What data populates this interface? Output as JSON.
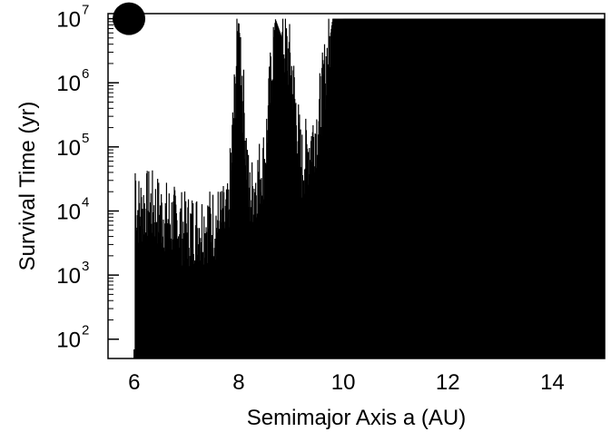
{
  "chart_data": {
    "type": "bar",
    "xlabel": "Semimajor Axis a (AU)",
    "ylabel": "Survival Time (yr)",
    "x_ticks": [
      6,
      8,
      10,
      12,
      14
    ],
    "y_tick_exponents": [
      "2",
      "3",
      "4",
      "5",
      "6",
      "7"
    ],
    "y_tick_base": "10",
    "xlim": [
      5.5,
      15.0
    ],
    "ylim": [
      50,
      12000000
    ],
    "y_scale": "log",
    "grid": false,
    "color": "#000000",
    "planet_marker": {
      "x": 5.9,
      "y": 10000000
    },
    "survival_profile": [
      {
        "x": 5.9,
        "y": 10000000
      },
      {
        "x": 6.05,
        "y": 10000
      },
      {
        "x": 6.3,
        "y": 12000
      },
      {
        "x": 6.6,
        "y": 8000
      },
      {
        "x": 7.0,
        "y": 5000
      },
      {
        "x": 7.4,
        "y": 6000
      },
      {
        "x": 7.8,
        "y": 7000
      },
      {
        "x": 8.0,
        "y": 10000000
      },
      {
        "x": 8.2,
        "y": 15000
      },
      {
        "x": 8.5,
        "y": 60000
      },
      {
        "x": 8.7,
        "y": 10000000
      },
      {
        "x": 9.0,
        "y": 2000000
      },
      {
        "x": 9.2,
        "y": 50000
      },
      {
        "x": 9.5,
        "y": 200000
      },
      {
        "x": 9.8,
        "y": 10000000
      },
      {
        "x": 10.2,
        "y": 10000000
      },
      {
        "x": 12.0,
        "y": 10000000
      },
      {
        "x": 15.0,
        "y": 10000000
      }
    ]
  }
}
